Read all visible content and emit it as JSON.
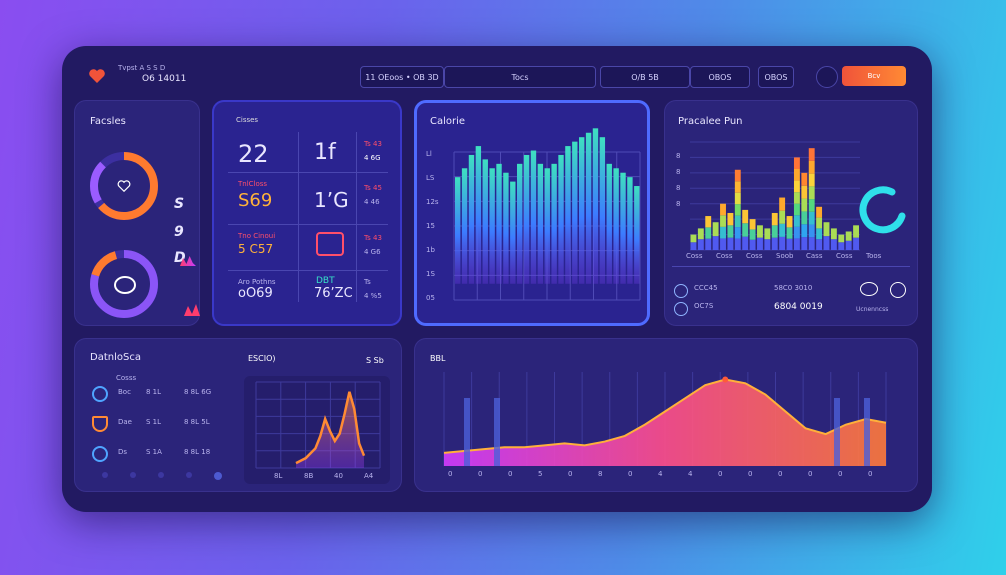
{
  "header": {
    "logo_icon": "heart-icon",
    "line1": "Tvpst  A S  S D",
    "line2": "O6 14011",
    "seg_a": "11    OEoos  •  OB 3D",
    "seg_b": "Tocs",
    "seg_c": "O/B 5B",
    "seg_d": "OBOS",
    "seg_e": "Bcv",
    "accent": "#f0533a"
  },
  "panel_faces": {
    "title": "Facsles",
    "letters": [
      "S",
      "9",
      "D"
    ]
  },
  "panel_stats": {
    "title": "Cisses",
    "rows": [
      {
        "a_small": "",
        "a": "22",
        "b": "1f",
        "c_small": "Ts 43",
        "c": "4 6G"
      },
      {
        "a_small": "TnlCloss",
        "a": "S69",
        "b": "1’G",
        "c_small": "Ts 45",
        "c": "4 46"
      },
      {
        "a_small": "Tno Cinoui",
        "a": "5 C57",
        "b": "",
        "c_small": "Ts 43",
        "c": "4 G6"
      },
      {
        "a_small": "Aro Pothns",
        "a": "oO69",
        "b": "76’ZC",
        "b_small": "DBT",
        "c_small": "Ts",
        "c": "4 %5"
      }
    ]
  },
  "panel_calorie": {
    "title": "Calorie",
    "ylabels": [
      "Ll",
      "LS",
      "12s",
      "15",
      "1b",
      "1S",
      "05"
    ]
  },
  "panel_practice": {
    "title": "Pracalee Pun",
    "ylabels": [
      "8",
      "8",
      "8",
      "8"
    ],
    "xlabels": [
      "Coss",
      "Coss",
      "Coss",
      "Soob",
      "Cass",
      "Coss",
      "Toos"
    ],
    "row1": {
      "a": "CCC45",
      "b": "58C0 3010",
      "c": "Tos"
    },
    "row2": {
      "a": "OC7S",
      "b": "6804 0019",
      "c": "Ucnenncss"
    }
  },
  "panel_dist": {
    "title": "DatnloSca",
    "sub": "Cosss",
    "chart_title": "ESCIO)",
    "chart_title_right": "S   Sb",
    "rows": [
      {
        "icon": "shield-icon",
        "a": "Boc",
        "b": "8 1L",
        "c": "8 8L 6G"
      },
      {
        "icon": "heart-icon",
        "a": "Dae",
        "b": "S 1L",
        "c": "8 8L 5L"
      },
      {
        "icon": "drop-icon",
        "a": "Ds",
        "b": "S 1A",
        "c": "8 8L 18"
      }
    ],
    "xlabels": [
      "8L",
      "8B",
      "40",
      "A4"
    ]
  },
  "panel_wave": {
    "title": "BBL",
    "xlabels": [
      "0",
      "0",
      "0",
      "5",
      "0",
      "8",
      "0",
      "4",
      "4",
      "0",
      "0",
      "0",
      "0",
      "0",
      "0"
    ]
  },
  "chart_data": [
    {
      "type": "bar",
      "name": "calorie",
      "values": [
        30,
        34,
        40,
        44,
        38,
        34,
        36,
        32,
        28,
        36,
        40,
        42,
        36,
        34,
        36,
        40,
        44,
        46,
        48,
        50,
        52,
        48,
        36,
        34,
        32,
        30,
        26
      ],
      "ylim": [
        0,
        60
      ]
    },
    {
      "type": "bar",
      "name": "practice",
      "values": [
        10,
        14,
        22,
        18,
        30,
        24,
        52,
        26,
        20,
        16,
        14,
        24,
        34,
        22,
        60,
        50,
        66,
        28,
        18,
        14,
        10,
        12,
        16
      ],
      "ylim": [
        0,
        70
      ]
    },
    {
      "type": "line",
      "name": "distribution",
      "values": [
        4,
        6,
        8,
        12,
        16,
        26,
        40,
        30,
        22,
        28,
        44,
        62,
        48,
        20,
        10
      ],
      "ylim": [
        0,
        70
      ]
    },
    {
      "type": "area",
      "name": "wave",
      "values": [
        14,
        16,
        18,
        20,
        20,
        22,
        24,
        22,
        26,
        32,
        44,
        58,
        72,
        86,
        92,
        88,
        76,
        58,
        40,
        34,
        44,
        50,
        46
      ],
      "ylim": [
        0,
        100
      ]
    }
  ]
}
